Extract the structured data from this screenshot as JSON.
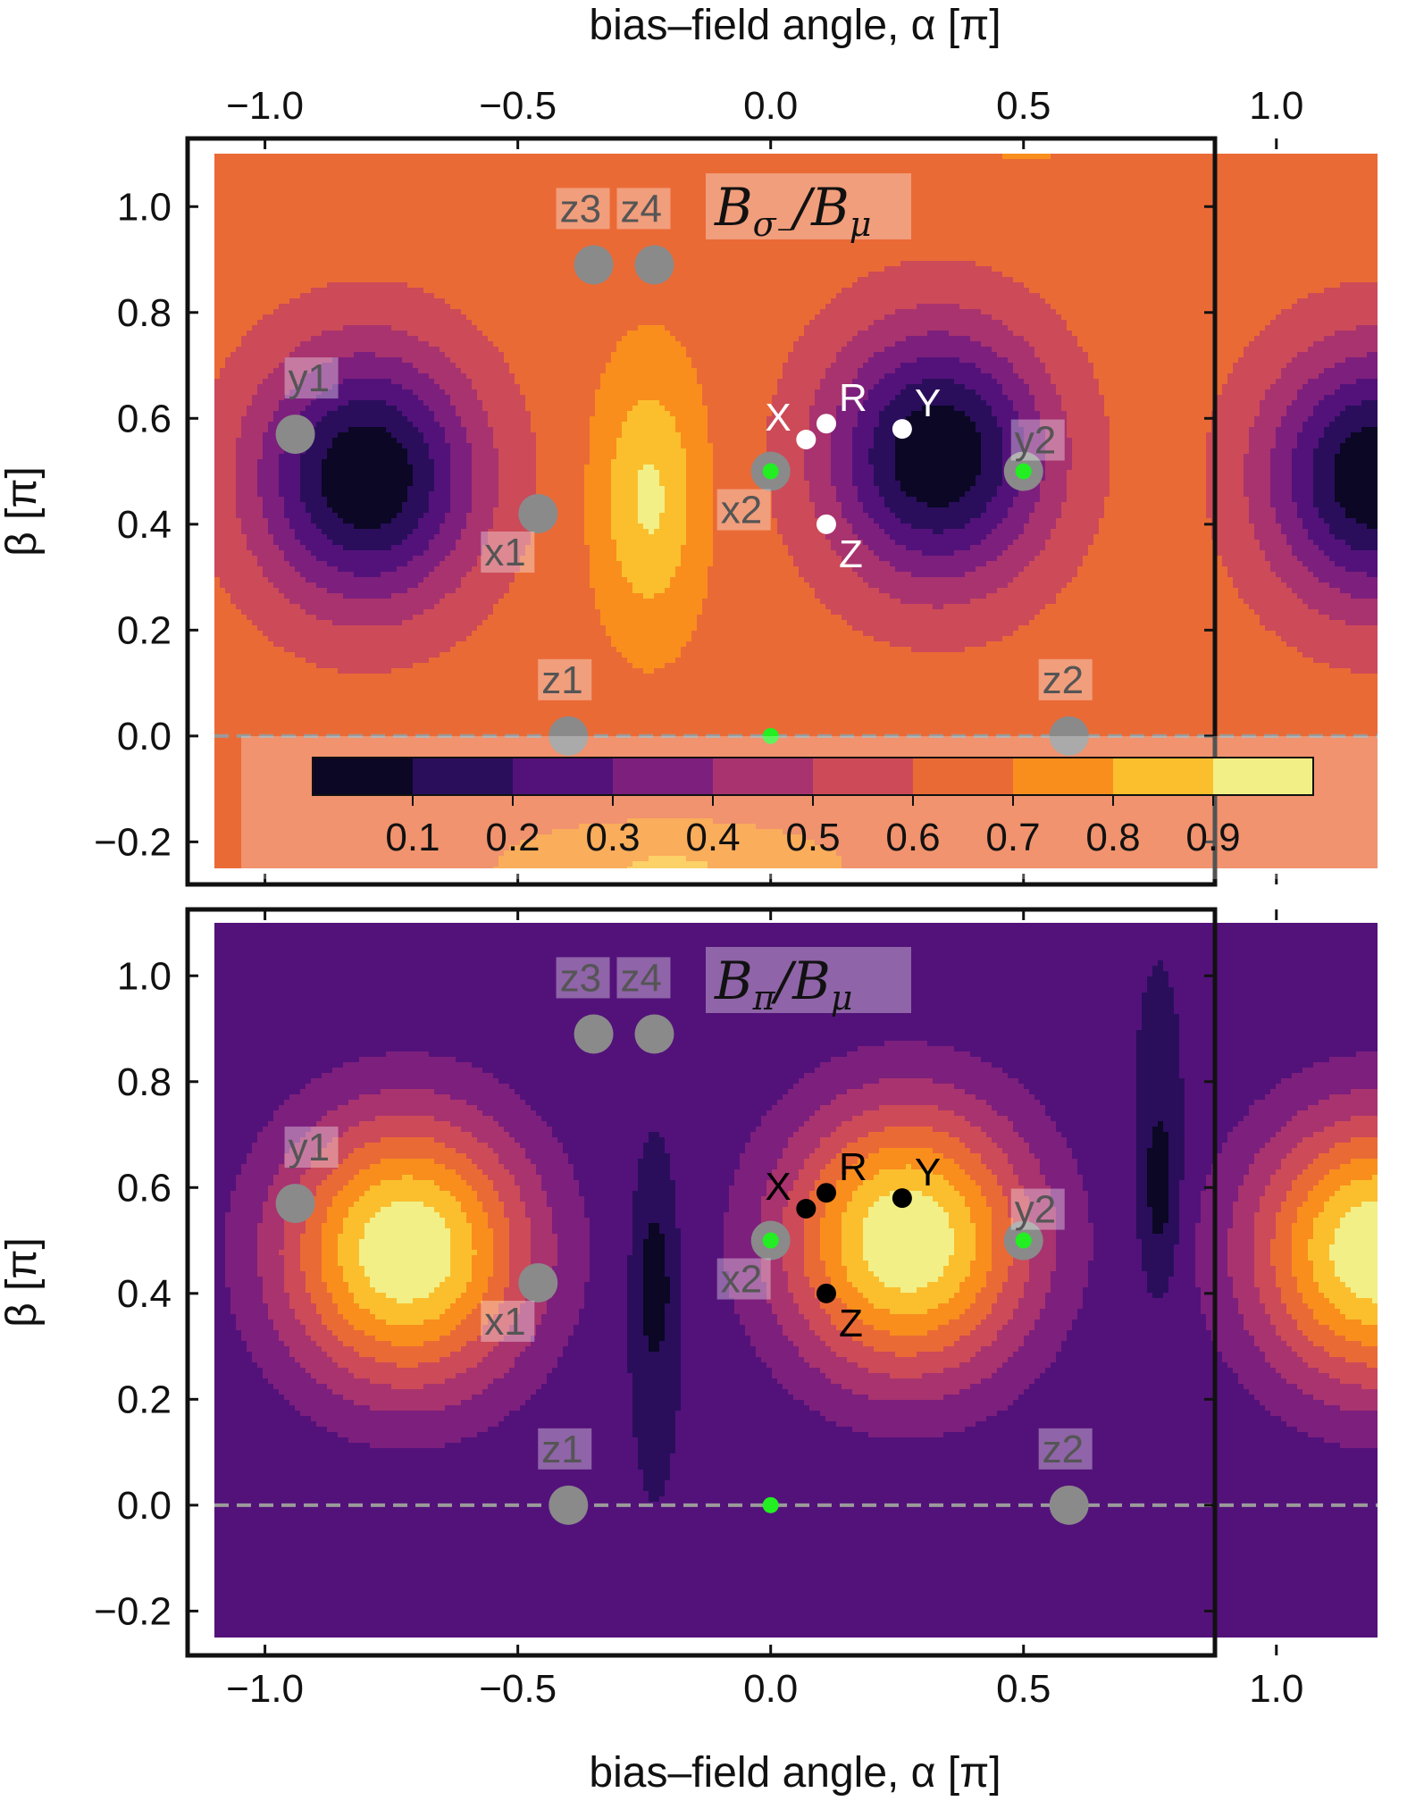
{
  "colors": {
    "inferno": [
      "#0b0724",
      "#2a0e5c",
      "#53127a",
      "#7d1f7d",
      "#a8336f",
      "#cd4a58",
      "#ea6a36",
      "#f98e1d",
      "#fbbf2e",
      "#f2ef86"
    ],
    "contour_line": "#4a4a4a",
    "marker_gray": "#8a8a8a",
    "marker_green": "#22ee22",
    "dashed_line": "#9a9a9a"
  },
  "figure": {
    "top_axis_label": "bias–field angle, α [π]",
    "bottom_axis_label": "bias–field angle, α [π]",
    "y_axis_label": "β [π]",
    "x_ticks": [
      "−1.0",
      "−0.5",
      "0.0",
      "0.5",
      "1.0"
    ],
    "y_ticks": [
      "−0.2",
      "0.0",
      "0.2",
      "0.4",
      "0.6",
      "0.8",
      "1.0"
    ]
  },
  "chart_data": [
    {
      "type": "heatmap",
      "title": "Bσ₋/Bμ",
      "title_parts": {
        "main": "B",
        "sub1": "σ₋",
        "mid": "/B",
        "sub2": "μ"
      },
      "xlabel": "bias–field angle, α [π]",
      "ylabel": "β [π]",
      "xlim": [
        -1.1,
        1.2
      ],
      "ylim": [
        -0.25,
        1.1
      ],
      "x_ticks": [
        -1.0,
        -0.5,
        0.0,
        0.5,
        1.0
      ],
      "y_ticks": [
        -0.2,
        0.0,
        0.2,
        0.4,
        0.6,
        0.8,
        1.0
      ],
      "colorbar": {
        "levels": [
          "0.1",
          "0.2",
          "0.3",
          "0.4",
          "0.5",
          "0.6",
          "0.7",
          "0.8",
          "0.9"
        ],
        "range": [
          0,
          1
        ],
        "placement": "bottom-inside"
      },
      "field": {
        "base": 0.66,
        "blobs": [
          {
            "x": -0.8,
            "y": 0.49,
            "amp": -0.66,
            "sx": 0.22,
            "sy": 0.24
          },
          {
            "x": 0.33,
            "y": 0.53,
            "amp": -0.66,
            "sx": 0.22,
            "sy": 0.24
          },
          {
            "x": 1.2,
            "y": 0.49,
            "amp": -0.66,
            "sx": 0.22,
            "sy": 0.24
          },
          {
            "x": -0.24,
            "y": 0.45,
            "amp": 0.26,
            "sx": 0.1,
            "sy": 0.24
          },
          {
            "x": 0.5,
            "y": 1.15,
            "amp": 0.1,
            "sx": 0.25,
            "sy": 0.06
          },
          {
            "x": -0.2,
            "y": -0.25,
            "amp": 0.15,
            "sx": 0.3,
            "sy": 0.08
          }
        ]
      },
      "reference_line": {
        "y": 0.0,
        "style": "dashed"
      },
      "points_gray": [
        {
          "label": "y1",
          "x": -0.94,
          "y": 0.57
        },
        {
          "label": "x1",
          "x": -0.46,
          "y": 0.42
        },
        {
          "label": "z3",
          "x": -0.35,
          "y": 0.89
        },
        {
          "label": "z4",
          "x": -0.23,
          "y": 0.89
        },
        {
          "label": "x2",
          "x": 0.0,
          "y": 0.5
        },
        {
          "label": "y2",
          "x": 0.5,
          "y": 0.5
        },
        {
          "label": "z1",
          "x": -0.4,
          "y": 0.0
        },
        {
          "label": "z2",
          "x": 0.59,
          "y": 0.0
        }
      ],
      "points_green": [
        {
          "x": 0.0,
          "y": 0.5
        },
        {
          "x": 0.5,
          "y": 0.5
        },
        {
          "x": 0.0,
          "y": 0.0
        }
      ],
      "points_marked": {
        "color": "#ffffff",
        "points": [
          {
            "label": "X",
            "x": 0.07,
            "y": 0.56
          },
          {
            "label": "R",
            "x": 0.11,
            "y": 0.59
          },
          {
            "label": "Y",
            "x": 0.26,
            "y": 0.58
          },
          {
            "label": "Z",
            "x": 0.11,
            "y": 0.4
          }
        ]
      }
    },
    {
      "type": "heatmap",
      "title": "Bπ/Bμ",
      "title_parts": {
        "main": "B",
        "sub1": "π",
        "mid": "/B",
        "sub2": "μ"
      },
      "xlabel": "bias–field angle, α [π]",
      "ylabel": "β [π]",
      "xlim": [
        -1.1,
        1.2
      ],
      "ylim": [
        -0.25,
        1.1
      ],
      "x_ticks": [
        -1.0,
        -0.5,
        0.0,
        0.5,
        1.0
      ],
      "y_ticks": [
        -0.2,
        0.0,
        0.2,
        0.4,
        0.6,
        0.8,
        1.0
      ],
      "field": {
        "base": 0.2,
        "blobs": [
          {
            "x": -0.72,
            "y": 0.48,
            "amp": 0.8,
            "sx": 0.25,
            "sy": 0.26
          },
          {
            "x": 0.27,
            "y": 0.5,
            "amp": 0.8,
            "sx": 0.25,
            "sy": 0.26
          },
          {
            "x": 1.2,
            "y": 0.48,
            "amp": 0.8,
            "sx": 0.25,
            "sy": 0.26
          },
          {
            "x": -0.23,
            "y": 0.42,
            "amp": -0.2,
            "sx": 0.04,
            "sy": 0.18
          },
          {
            "x": 0.77,
            "y": 0.6,
            "amp": -0.2,
            "sx": 0.04,
            "sy": 0.18
          }
        ]
      },
      "reference_line": {
        "y": 0.0,
        "style": "dashed"
      },
      "points_gray": [
        {
          "label": "y1",
          "x": -0.94,
          "y": 0.57
        },
        {
          "label": "x1",
          "x": -0.46,
          "y": 0.42
        },
        {
          "label": "z3",
          "x": -0.35,
          "y": 0.89
        },
        {
          "label": "z4",
          "x": -0.23,
          "y": 0.89
        },
        {
          "label": "x2",
          "x": 0.0,
          "y": 0.5
        },
        {
          "label": "y2",
          "x": 0.5,
          "y": 0.5
        },
        {
          "label": "z1",
          "x": -0.4,
          "y": 0.0
        },
        {
          "label": "z2",
          "x": 0.59,
          "y": 0.0
        }
      ],
      "points_green": [
        {
          "x": 0.0,
          "y": 0.5
        },
        {
          "x": 0.5,
          "y": 0.5
        },
        {
          "x": 0.0,
          "y": 0.0
        }
      ],
      "points_marked": {
        "color": "#000000",
        "points": [
          {
            "label": "X",
            "x": 0.07,
            "y": 0.56
          },
          {
            "label": "R",
            "x": 0.11,
            "y": 0.59
          },
          {
            "label": "Y",
            "x": 0.26,
            "y": 0.58
          },
          {
            "label": "Z",
            "x": 0.11,
            "y": 0.4
          }
        ]
      }
    }
  ]
}
